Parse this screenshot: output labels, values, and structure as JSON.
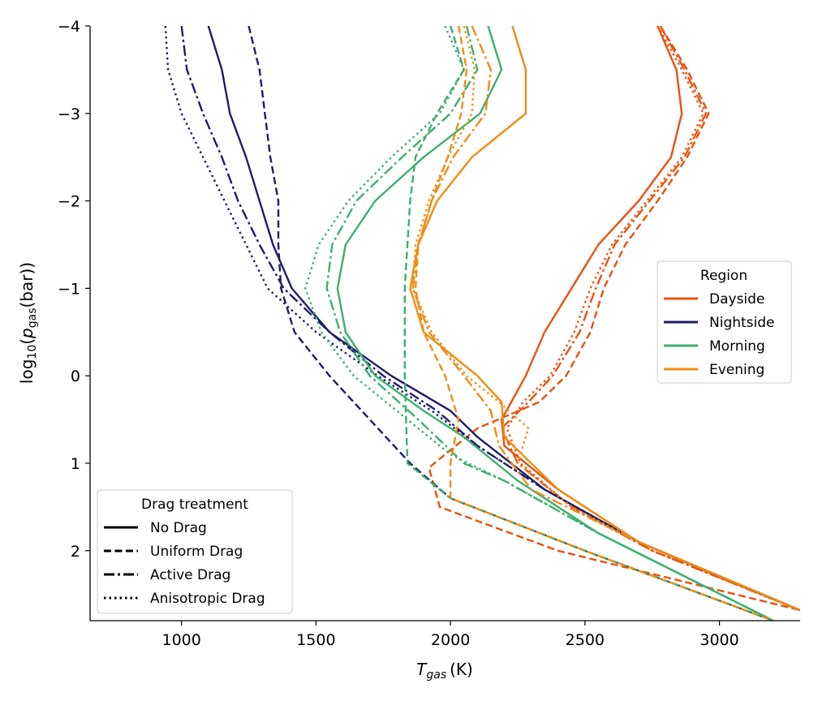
{
  "chart_data": {
    "type": "line",
    "title": "",
    "xlabel": "T_gas (K)",
    "xlabel_parts": {
      "var": "T",
      "sub": "gas",
      "unit": "(K)"
    },
    "ylabel": "log10(p_gas(bar))",
    "ylabel_parts": {
      "pre": "log",
      "sub1": "10",
      "p": "p",
      "sub2": "gas",
      "post": "(bar)"
    },
    "xlim": [
      660,
      3300
    ],
    "ylim": [
      -4,
      2.8
    ],
    "y_inverted": true,
    "xticks": [
      1000,
      1500,
      2000,
      2500,
      3000
    ],
    "yticks": [
      -4,
      -3,
      -2,
      -1,
      0,
      1,
      2
    ],
    "ytick_labels": [
      "−4",
      "−3",
      "−2",
      "−1",
      "0",
      "1",
      "2"
    ],
    "grid": false,
    "colors": {
      "Dayside": "#e8520f",
      "Nightside": "#1f1d6b",
      "Morning": "#3daf6e",
      "Evening": "#f08c13"
    },
    "dash_styles": {
      "No Drag": "",
      "Uniform Drag": "9,4.5",
      "Active Drag": "13,4,3,4",
      "Anisotropic Drag": "2.5,4"
    },
    "legend_region": {
      "title": "Region",
      "placement": "center-right",
      "entries": [
        "Dayside",
        "Nightside",
        "Morning",
        "Evening"
      ]
    },
    "legend_drag": {
      "title": "Drag treatment",
      "placement": "lower-left",
      "entries": [
        "No Drag",
        "Uniform Drag",
        "Active Drag",
        "Anisotropic Drag"
      ]
    },
    "series": [
      {
        "name": "Dayside – No Drag",
        "region": "Dayside",
        "drag": "No Drag",
        "points": [
          [
            2770,
            -4
          ],
          [
            2840,
            -3.5
          ],
          [
            2860,
            -3
          ],
          [
            2820,
            -2.5
          ],
          [
            2700,
            -2
          ],
          [
            2550,
            -1.5
          ],
          [
            2450,
            -1
          ],
          [
            2350,
            -0.5
          ],
          [
            2280,
            0
          ],
          [
            2190,
            0.5
          ],
          [
            2200,
            0.8
          ],
          [
            2400,
            1.3
          ],
          [
            2700,
            1.9
          ],
          [
            3000,
            2.3
          ],
          [
            3300,
            2.68
          ]
        ]
      },
      {
        "name": "Dayside – Uniform Drag",
        "region": "Dayside",
        "drag": "Uniform Drag",
        "points": [
          [
            2780,
            -4
          ],
          [
            2880,
            -3.5
          ],
          [
            2960,
            -3
          ],
          [
            2880,
            -2.5
          ],
          [
            2770,
            -2
          ],
          [
            2650,
            -1.5
          ],
          [
            2570,
            -1
          ],
          [
            2520,
            -0.5
          ],
          [
            2430,
            0
          ],
          [
            2330,
            0.3
          ],
          [
            2100,
            0.6
          ],
          [
            1920,
            1.05
          ],
          [
            1960,
            1.5
          ],
          [
            2400,
            2.0
          ],
          [
            3300,
            2.68
          ]
        ]
      },
      {
        "name": "Dayside – Active Drag",
        "region": "Dayside",
        "drag": "Active Drag",
        "points": [
          [
            2780,
            -4
          ],
          [
            2870,
            -3.5
          ],
          [
            2950,
            -3
          ],
          [
            2870,
            -2.5
          ],
          [
            2740,
            -2
          ],
          [
            2610,
            -1.5
          ],
          [
            2540,
            -1
          ],
          [
            2480,
            -0.5
          ],
          [
            2380,
            0
          ],
          [
            2290,
            0.3
          ],
          [
            2190,
            0.6
          ],
          [
            2250,
            1.0
          ],
          [
            2450,
            1.5
          ],
          [
            2750,
            2.0
          ],
          [
            3300,
            2.68
          ]
        ]
      },
      {
        "name": "Dayside – Anisotropic Drag",
        "region": "Dayside",
        "drag": "Anisotropic Drag",
        "points": [
          [
            2770,
            -4
          ],
          [
            2860,
            -3.5
          ],
          [
            2940,
            -3
          ],
          [
            2860,
            -2.5
          ],
          [
            2730,
            -2
          ],
          [
            2600,
            -1.5
          ],
          [
            2520,
            -1
          ],
          [
            2460,
            -0.5
          ],
          [
            2370,
            0
          ],
          [
            2270,
            0.3
          ],
          [
            2210,
            0.6
          ],
          [
            2260,
            1.0
          ],
          [
            2450,
            1.5
          ],
          [
            2750,
            2.0
          ],
          [
            3300,
            2.68
          ]
        ]
      },
      {
        "name": "Nightside – No Drag",
        "region": "Nightside",
        "drag": "No Drag",
        "points": [
          [
            1100,
            -4
          ],
          [
            1150,
            -3.5
          ],
          [
            1180,
            -3
          ],
          [
            1240,
            -2.5
          ],
          [
            1290,
            -2
          ],
          [
            1340,
            -1.5
          ],
          [
            1410,
            -1
          ],
          [
            1550,
            -0.5
          ],
          [
            1780,
            0
          ],
          [
            2000,
            0.4
          ],
          [
            2100,
            0.7
          ],
          [
            2350,
            1.3
          ],
          [
            2700,
            1.9
          ],
          [
            3300,
            2.68
          ]
        ]
      },
      {
        "name": "Nightside – Uniform Drag",
        "region": "Nightside",
        "drag": "Uniform Drag",
        "points": [
          [
            1250,
            -4
          ],
          [
            1290,
            -3.5
          ],
          [
            1310,
            -3
          ],
          [
            1330,
            -2.5
          ],
          [
            1360,
            -2
          ],
          [
            1360,
            -1.5
          ],
          [
            1370,
            -1
          ],
          [
            1420,
            -0.5
          ],
          [
            1550,
            0
          ],
          [
            1700,
            0.5
          ],
          [
            1850,
            1.0
          ],
          [
            2000,
            1.4
          ],
          [
            2500,
            2.0
          ],
          [
            3200,
            2.8
          ]
        ]
      },
      {
        "name": "Nightside – Active Drag",
        "region": "Nightside",
        "drag": "Active Drag",
        "points": [
          [
            1000,
            -4
          ],
          [
            1020,
            -3.5
          ],
          [
            1080,
            -3
          ],
          [
            1150,
            -2.5
          ],
          [
            1210,
            -2
          ],
          [
            1290,
            -1.5
          ],
          [
            1380,
            -1
          ],
          [
            1550,
            -0.5
          ],
          [
            1750,
            0
          ],
          [
            1950,
            0.4
          ],
          [
            2100,
            0.8
          ],
          [
            2350,
            1.3
          ],
          [
            2700,
            1.9
          ],
          [
            3300,
            2.68
          ]
        ]
      },
      {
        "name": "Nightside – Anisotropic Drag",
        "region": "Nightside",
        "drag": "Anisotropic Drag",
        "points": [
          [
            940,
            -4
          ],
          [
            950,
            -3.5
          ],
          [
            1000,
            -3
          ],
          [
            1080,
            -2.5
          ],
          [
            1160,
            -2
          ],
          [
            1240,
            -1.5
          ],
          [
            1320,
            -1
          ],
          [
            1500,
            -0.5
          ],
          [
            1730,
            0
          ],
          [
            1930,
            0.4
          ],
          [
            2100,
            0.8
          ],
          [
            2350,
            1.3
          ],
          [
            2700,
            1.9
          ],
          [
            3300,
            2.68
          ]
        ]
      },
      {
        "name": "Morning – No Drag",
        "region": "Morning",
        "drag": "No Drag",
        "points": [
          [
            2140,
            -4
          ],
          [
            2190,
            -3.5
          ],
          [
            2110,
            -3
          ],
          [
            1900,
            -2.5
          ],
          [
            1720,
            -2
          ],
          [
            1610,
            -1.5
          ],
          [
            1580,
            -1
          ],
          [
            1610,
            -0.5
          ],
          [
            1720,
            0
          ],
          [
            1900,
            0.4
          ],
          [
            2050,
            0.7
          ],
          [
            2250,
            1.2
          ],
          [
            2550,
            1.8
          ],
          [
            3200,
            2.8
          ]
        ]
      },
      {
        "name": "Morning – Uniform Drag",
        "region": "Morning",
        "drag": "Uniform Drag",
        "points": [
          [
            2000,
            -4
          ],
          [
            2050,
            -3.5
          ],
          [
            1950,
            -3
          ],
          [
            1870,
            -2.5
          ],
          [
            1850,
            -2
          ],
          [
            1840,
            -1.5
          ],
          [
            1830,
            -1
          ],
          [
            1830,
            -0.5
          ],
          [
            1830,
            0
          ],
          [
            1835,
            0.5
          ],
          [
            1840,
            1.0
          ],
          [
            2000,
            1.4
          ],
          [
            2500,
            2.0
          ],
          [
            3200,
            2.8
          ]
        ]
      },
      {
        "name": "Morning – Active Drag",
        "region": "Morning",
        "drag": "Active Drag",
        "points": [
          [
            2060,
            -4
          ],
          [
            2100,
            -3.5
          ],
          [
            2000,
            -3
          ],
          [
            1820,
            -2.5
          ],
          [
            1650,
            -2
          ],
          [
            1560,
            -1.5
          ],
          [
            1540,
            -1
          ],
          [
            1590,
            -0.5
          ],
          [
            1700,
            0
          ],
          [
            1880,
            0.5
          ],
          [
            2050,
            1.0
          ],
          [
            2200,
            1.2
          ],
          [
            2550,
            1.8
          ],
          [
            3200,
            2.8
          ]
        ]
      },
      {
        "name": "Morning – Anisotropic Drag",
        "region": "Morning",
        "drag": "Anisotropic Drag",
        "points": [
          [
            1980,
            -4
          ],
          [
            2050,
            -3.5
          ],
          [
            1960,
            -3
          ],
          [
            1780,
            -2.5
          ],
          [
            1620,
            -2
          ],
          [
            1510,
            -1.5
          ],
          [
            1460,
            -1
          ],
          [
            1520,
            -0.5
          ],
          [
            1640,
            0
          ],
          [
            1840,
            0.5
          ],
          [
            2000,
            0.9
          ],
          [
            2200,
            1.2
          ],
          [
            2550,
            1.8
          ],
          [
            3200,
            2.8
          ]
        ]
      },
      {
        "name": "Evening – No Drag",
        "region": "Evening",
        "drag": "No Drag",
        "points": [
          [
            2230,
            -4
          ],
          [
            2280,
            -3.5
          ],
          [
            2280,
            -3
          ],
          [
            2080,
            -2.5
          ],
          [
            1950,
            -2
          ],
          [
            1880,
            -1.5
          ],
          [
            1850,
            -1
          ],
          [
            1900,
            -0.5
          ],
          [
            2100,
            0
          ],
          [
            2190,
            0.3
          ],
          [
            2200,
            0.7
          ],
          [
            2400,
            1.3
          ],
          [
            2700,
            1.9
          ],
          [
            3300,
            2.68
          ]
        ]
      },
      {
        "name": "Evening – Uniform Drag",
        "region": "Evening",
        "drag": "Uniform Drag",
        "points": [
          [
            2030,
            -4
          ],
          [
            2060,
            -3.5
          ],
          [
            2040,
            -3
          ],
          [
            1990,
            -2.5
          ],
          [
            1930,
            -2
          ],
          [
            1880,
            -1.5
          ],
          [
            1870,
            -1
          ],
          [
            1900,
            -0.5
          ],
          [
            1980,
            0
          ],
          [
            2030,
            0.5
          ],
          [
            2000,
            1.0
          ],
          [
            2000,
            1.4
          ],
          [
            2500,
            2.0
          ],
          [
            3200,
            2.8
          ]
        ]
      },
      {
        "name": "Evening – Active Drag",
        "region": "Evening",
        "drag": "Active Drag",
        "points": [
          [
            2080,
            -4
          ],
          [
            2150,
            -3.5
          ],
          [
            2130,
            -3
          ],
          [
            2010,
            -2.5
          ],
          [
            1930,
            -2
          ],
          [
            1880,
            -1.5
          ],
          [
            1860,
            -1
          ],
          [
            1920,
            -0.5
          ],
          [
            2050,
            0
          ],
          [
            2150,
            0.4
          ],
          [
            2180,
            0.8
          ],
          [
            2300,
            1.3
          ],
          [
            2700,
            1.9
          ],
          [
            3300,
            2.68
          ]
        ]
      },
      {
        "name": "Evening – Anisotropic Drag",
        "region": "Evening",
        "drag": "Anisotropic Drag",
        "points": [
          [
            2050,
            -4
          ],
          [
            2090,
            -3.5
          ],
          [
            2080,
            -3
          ],
          [
            1990,
            -2.5
          ],
          [
            1920,
            -2
          ],
          [
            1870,
            -1.5
          ],
          [
            1860,
            -1
          ],
          [
            1930,
            -0.5
          ],
          [
            2060,
            0
          ],
          [
            2180,
            0.3
          ],
          [
            2290,
            0.6
          ],
          [
            2250,
            1.0
          ],
          [
            2450,
            1.5
          ],
          [
            2700,
            1.9
          ],
          [
            3300,
            2.68
          ]
        ]
      }
    ]
  }
}
